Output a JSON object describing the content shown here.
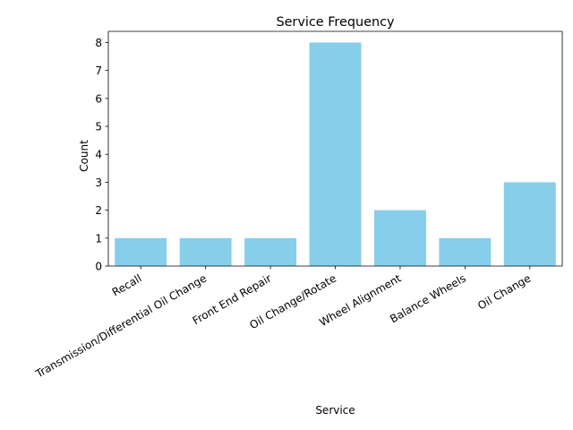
{
  "chart_data": {
    "type": "bar",
    "title": "Service Frequency",
    "xlabel": "Service",
    "ylabel": "Count",
    "categories": [
      "Recall",
      "Transmission/Differential Oil Change",
      "Front End Repair",
      "Oil Change/Rotate",
      "Wheel Alignment",
      "Balance Wheels",
      "Oil Change"
    ],
    "values": [
      1,
      1,
      1,
      8,
      2,
      1,
      3
    ],
    "ylim": [
      0,
      8.4
    ],
    "yticks": [
      0,
      1,
      2,
      3,
      4,
      5,
      6,
      7,
      8
    ],
    "bar_color": "#87ceeb",
    "grid": false
  }
}
